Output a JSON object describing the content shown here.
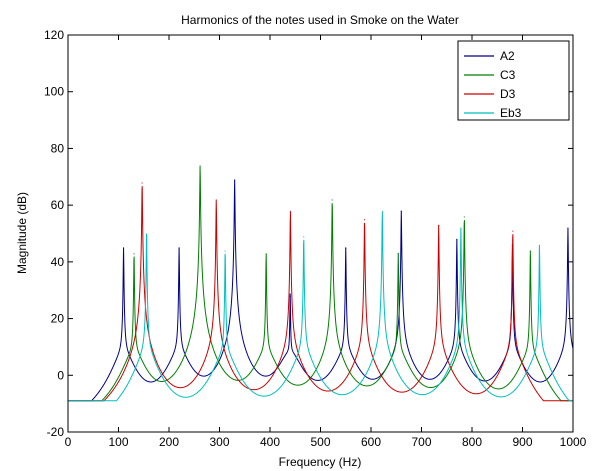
{
  "chart_data": {
    "type": "line",
    "title": "Harmonics of the notes used in Smoke on the Water",
    "xlabel": "Frequency (Hz)",
    "ylabel": "Magnitude (dB)",
    "xlim": [
      0,
      1000
    ],
    "ylim": [
      -20,
      120
    ],
    "xticks": [
      0,
      100,
      200,
      300,
      400,
      500,
      600,
      700,
      800,
      900,
      1000
    ],
    "yticks": [
      -20,
      0,
      20,
      40,
      60,
      80,
      100,
      120
    ],
    "grid": false,
    "legend_position": "top-right",
    "series": [
      {
        "name": "A2",
        "color": "#00008b",
        "fundamental_hz": 110,
        "peaks": [
          {
            "x": 110,
            "y": 45
          },
          {
            "x": 220,
            "y": 45
          },
          {
            "x": 330,
            "y": 69
          },
          {
            "x": 440,
            "y": 28
          },
          {
            "x": 550,
            "y": 45
          },
          {
            "x": 660,
            "y": 58
          },
          {
            "x": 770,
            "y": 48
          },
          {
            "x": 880,
            "y": 46
          },
          {
            "x": 990,
            "y": 52
          }
        ]
      },
      {
        "name": "C3",
        "color": "#007f00",
        "fundamental_hz": 130.8,
        "peaks": [
          {
            "x": 130.8,
            "y": 43
          },
          {
            "x": 261.6,
            "y": 74
          },
          {
            "x": 392.4,
            "y": 43
          },
          {
            "x": 523.2,
            "y": 62
          },
          {
            "x": 654,
            "y": 43
          },
          {
            "x": 784.8,
            "y": 56
          },
          {
            "x": 915.6,
            "y": 44
          }
        ]
      },
      {
        "name": "D3",
        "color": "#cc0000",
        "fundamental_hz": 146.8,
        "peaks": [
          {
            "x": 146.8,
            "y": 68
          },
          {
            "x": 293.6,
            "y": 62
          },
          {
            "x": 440.4,
            "y": 58
          },
          {
            "x": 587.2,
            "y": 55
          },
          {
            "x": 734,
            "y": 53
          },
          {
            "x": 880.8,
            "y": 51
          }
        ]
      },
      {
        "name": "Eb3",
        "color": "#00bfbf",
        "fundamental_hz": 155.6,
        "peaks": [
          {
            "x": 155.6,
            "y": 50
          },
          {
            "x": 311.2,
            "y": 44
          },
          {
            "x": 466.8,
            "y": 49
          },
          {
            "x": 622.4,
            "y": 58
          },
          {
            "x": 778,
            "y": 52
          },
          {
            "x": 933.6,
            "y": 46
          }
        ]
      }
    ]
  }
}
